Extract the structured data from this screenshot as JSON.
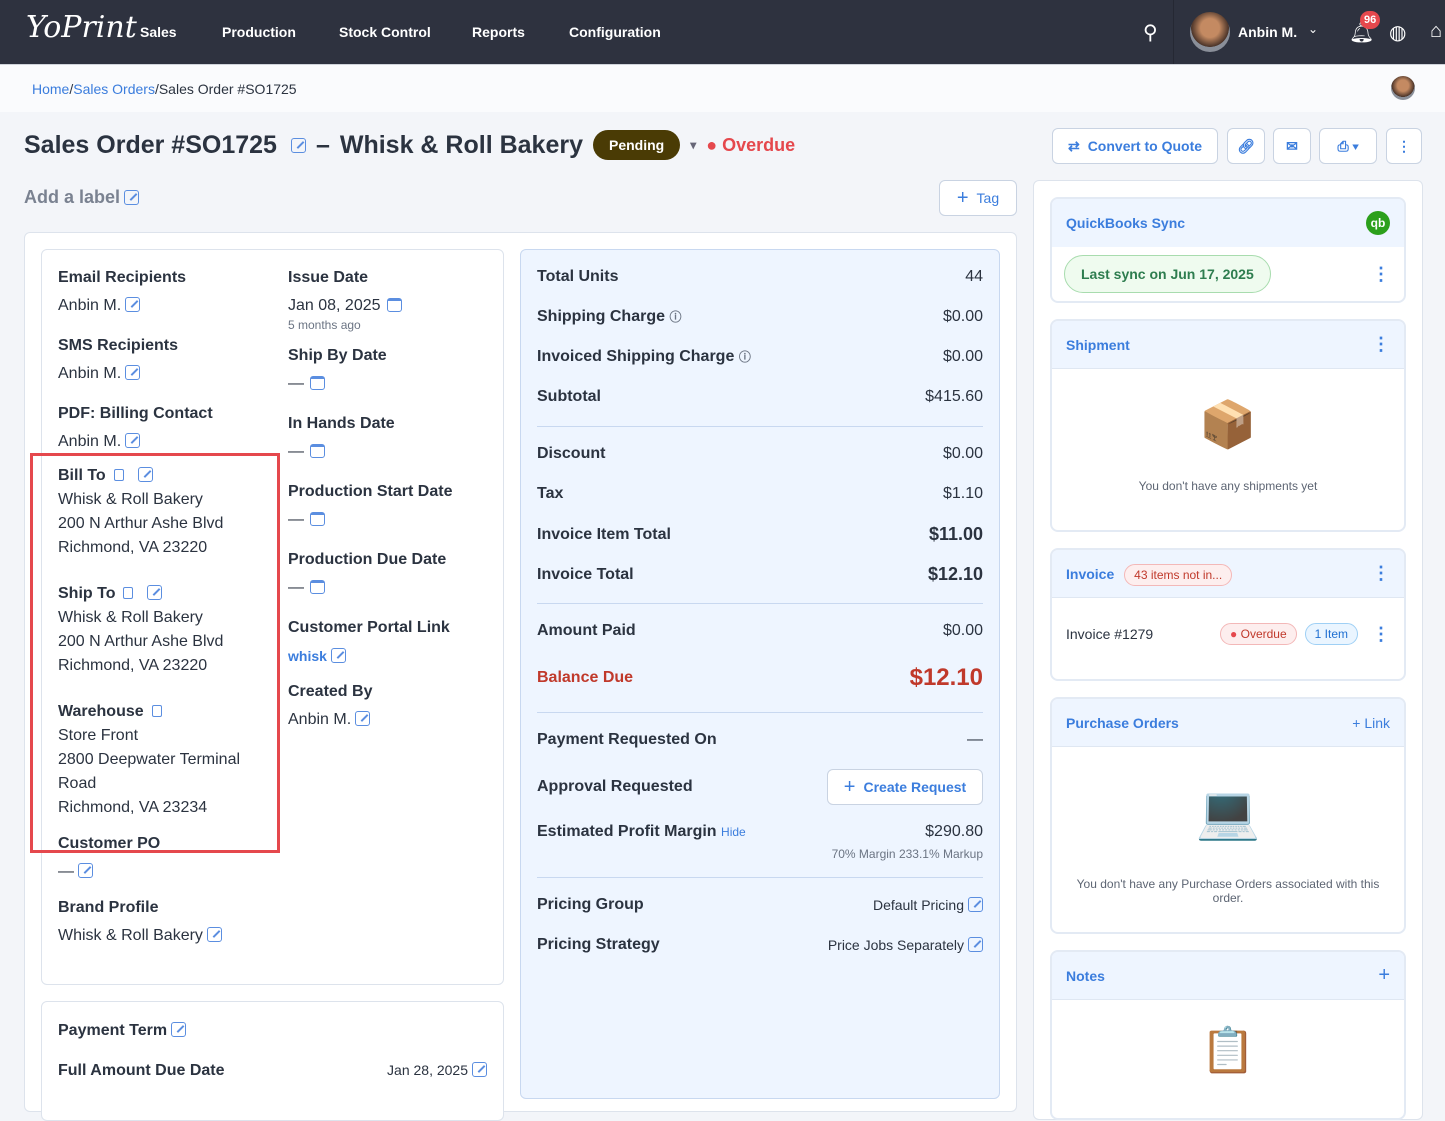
{
  "nav": {
    "logo": "YoPrint",
    "items": [
      "Sales",
      "Production",
      "Stock Control",
      "Reports",
      "Configuration"
    ],
    "user": "Anbin M.",
    "notifications": "96"
  },
  "breadcrumb": {
    "home": "Home",
    "sales_orders": "Sales Orders",
    "current": "Sales Order #SO1725"
  },
  "header": {
    "order": "Sales Order #SO1725",
    "dash": "–",
    "customer": "Whisk & Roll Bakery",
    "status": "Pending",
    "overdue": "Overdue",
    "convert": "Convert to Quote",
    "add_label": "Add a label",
    "tag": "Tag"
  },
  "details": {
    "email_label": "Email Recipients",
    "email": "Anbin M.",
    "sms_label": "SMS Recipients",
    "sms": "Anbin M.",
    "pdf_label": "PDF: Billing Contact",
    "pdf": "Anbin M.",
    "bill_label": "Bill To",
    "bill": [
      "Whisk & Roll Bakery",
      "200 N Arthur Ashe Blvd",
      "Richmond, VA 23220"
    ],
    "ship_label": "Ship To",
    "ship": [
      "Whisk & Roll Bakery",
      "200 N Arthur Ashe Blvd",
      "Richmond, VA 23220"
    ],
    "wh_label": "Warehouse",
    "wh": [
      "Store Front",
      "2800 Deepwater Terminal",
      "Road",
      "Richmond, VA 23234"
    ],
    "po_label": "Customer PO",
    "po": "—",
    "brand_label": "Brand Profile",
    "brand": "Whisk & Roll Bakery",
    "issue_label": "Issue Date",
    "issue": "Jan 08, 2025",
    "issue_ago": "5 months ago",
    "shipby_label": "Ship By Date",
    "shipby": "—",
    "inhands_label": "In Hands Date",
    "inhands": "—",
    "pstart_label": "Production Start Date",
    "pstart": "—",
    "pdue_label": "Production Due Date",
    "pdue": "—",
    "portal_label": "Customer Portal Link",
    "portal": "whisk",
    "created_label": "Created By",
    "created": "Anbin M."
  },
  "payment": {
    "term_label": "Payment Term",
    "due_label": "Full Amount Due Date",
    "due": "Jan 28, 2025"
  },
  "summary": {
    "rows": [
      [
        "Total Units",
        "44"
      ],
      [
        "Shipping Charge",
        "$0.00"
      ],
      [
        "Invoiced Shipping Charge",
        "$0.00"
      ],
      [
        "Subtotal",
        "$415.60"
      ],
      [
        "Discount",
        "$0.00"
      ],
      [
        "Tax",
        "$1.10"
      ],
      [
        "Invoice Item Total",
        "$11.00"
      ],
      [
        "Invoice Total",
        "$12.10"
      ],
      [
        "Amount Paid",
        "$0.00"
      ]
    ],
    "balance_label": "Balance Due",
    "balance": "$12.10",
    "payreq_label": "Payment Requested On",
    "payreq": "—",
    "approval_label": "Approval Requested",
    "create_request": "Create Request",
    "profit_label": "Estimated Profit Margin",
    "hide": "Hide",
    "profit": "$290.80",
    "profit_sub": "70% Margin 233.1% Markup",
    "pg_label": "Pricing Group",
    "pg": "Default Pricing",
    "ps_label": "Pricing Strategy",
    "ps": "Price Jobs Separately"
  },
  "side": {
    "qb_title": "QuickBooks Sync",
    "qb_sync": "Last sync on Jun 17, 2025",
    "ship_title": "Shipment",
    "ship_empty": "You don't have any shipments yet",
    "inv_title": "Invoice",
    "inv_badge": "43 items not in...",
    "inv_no": "Invoice #1279",
    "inv_status": "Overdue",
    "inv_items": "1 Item",
    "po_title": "Purchase Orders",
    "po_link": "Link",
    "po_empty": "You don't have any Purchase Orders associated with this order.",
    "notes_title": "Notes"
  },
  "colors": {
    "nav": "#2e323f",
    "accent": "#3b7ddd",
    "overdue": "#e5484d",
    "pending": "#4a3b05",
    "highlight": "#e5484d"
  }
}
